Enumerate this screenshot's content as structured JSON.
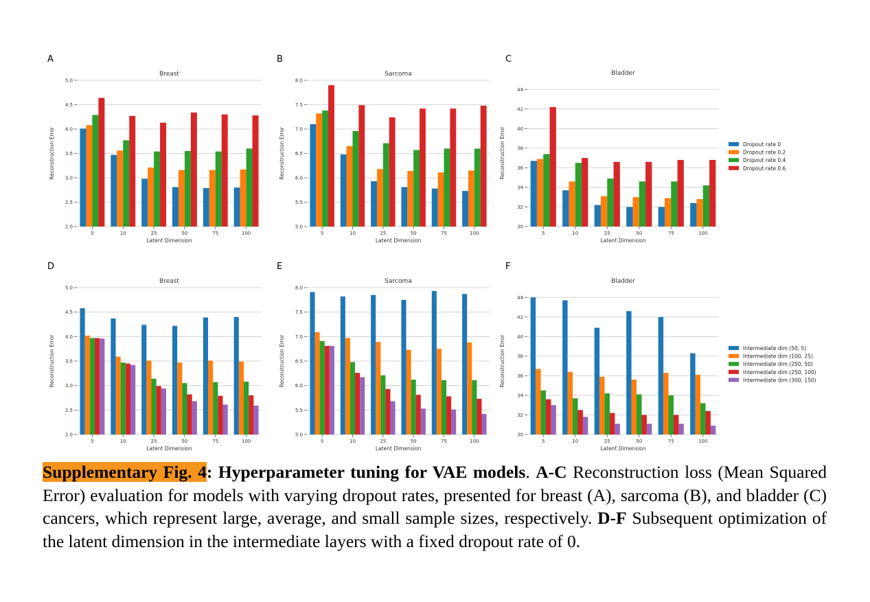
{
  "figure_id": "Supplementary Fig. 4",
  "caption": {
    "label": "Supplementary Fig. 4",
    "title": ": Hyperparameter tuning for VAE models",
    "title_end": ".",
    "ac_label": "A-C",
    "ac_text": " Reconstruction loss (Mean Squared Error) evaluation for models with varying dropout rates, presented for breast (A), sarcoma (B), and bladder (C) cancers, which represent large, average, and small sample sizes, respectively.",
    "df_label": "D-F",
    "df_text": " Subsequent optimization of the latent dimension in the intermediate layers with a fixed dropout rate of 0."
  },
  "legends": {
    "dropout": {
      "items": [
        "Dropout rate 0",
        "Dropout rate 0.2",
        "Dropout rate 0.4",
        "Dropout rate 0.6"
      ]
    },
    "intermediate": {
      "items": [
        "Intermediate dim (50, 5)",
        "Intermediate dim (100, 25)",
        "Intermediate dim (250, 50)",
        "Intermediate dim (250, 100)",
        "Intermediate dim (300, 150)"
      ]
    }
  },
  "colors": {
    "series": [
      "#1f77b4",
      "#ff7f0e",
      "#2ca02c",
      "#d62728",
      "#9467bd"
    ],
    "grid": "#c8c8c8",
    "caption_highlight": "#f7941d"
  },
  "chart_data": [
    {
      "panel": "A",
      "type": "bar",
      "title": "Breast",
      "xlabel": "Latent Dimension",
      "ylabel": "Reconstruction Error",
      "categories": [
        "5",
        "10",
        "25",
        "50",
        "75",
        "100"
      ],
      "ylim": [
        2.0,
        5.0
      ],
      "yticks": [
        "2.0",
        "2.5",
        "3.0",
        "3.5",
        "4.0",
        "4.5",
        "5.0"
      ],
      "legend": "dropout",
      "series": [
        {
          "name": "Dropout rate 0",
          "values": [
            4.01,
            3.47,
            2.98,
            2.81,
            2.79,
            2.8
          ]
        },
        {
          "name": "Dropout rate 0.2",
          "values": [
            4.08,
            3.56,
            3.21,
            3.16,
            3.16,
            3.17
          ]
        },
        {
          "name": "Dropout rate 0.4",
          "values": [
            4.29,
            3.77,
            3.54,
            3.55,
            3.54,
            3.6
          ]
        },
        {
          "name": "Dropout rate 0.6",
          "values": [
            4.64,
            4.27,
            4.13,
            4.34,
            4.3,
            4.28
          ]
        }
      ]
    },
    {
      "panel": "B",
      "type": "bar",
      "title": "Sarcoma",
      "xlabel": "Latent Dimension",
      "ylabel": "Reconstruction Error",
      "categories": [
        "5",
        "10",
        "25",
        "50",
        "75",
        "100"
      ],
      "ylim": [
        5.0,
        8.0
      ],
      "yticks": [
        "5.0",
        "5.5",
        "6.0",
        "6.5",
        "7.0",
        "7.5",
        "8.0"
      ],
      "legend": "dropout",
      "series": [
        {
          "name": "Dropout rate 0",
          "values": [
            7.1,
            6.48,
            5.93,
            5.81,
            5.78,
            5.73
          ]
        },
        {
          "name": "Dropout rate 0.2",
          "values": [
            7.32,
            6.65,
            6.18,
            6.14,
            6.11,
            6.15
          ]
        },
        {
          "name": "Dropout rate 0.4",
          "values": [
            7.38,
            6.96,
            6.71,
            6.57,
            6.6,
            6.6
          ]
        },
        {
          "name": "Dropout rate 0.6",
          "values": [
            7.9,
            7.49,
            7.24,
            7.42,
            7.42,
            7.48
          ]
        }
      ]
    },
    {
      "panel": "C",
      "type": "bar",
      "title": "Bladder",
      "xlabel": "Latent Dimension",
      "ylabel": "Reconstruction Error",
      "categories": [
        "5",
        "10",
        "25",
        "50",
        "75",
        "100"
      ],
      "ylim": [
        30,
        45
      ],
      "yticks": [
        "30",
        "32",
        "34",
        "36",
        "38",
        "40",
        "42",
        "44"
      ],
      "legend": "dropout",
      "series": [
        {
          "name": "Dropout rate 0",
          "values": [
            36.7,
            33.7,
            32.2,
            32.0,
            32.0,
            32.4
          ]
        },
        {
          "name": "Dropout rate 0.2",
          "values": [
            36.9,
            34.6,
            33.1,
            33.0,
            32.9,
            32.8
          ]
        },
        {
          "name": "Dropout rate 0.4",
          "values": [
            37.4,
            36.5,
            34.9,
            34.6,
            34.6,
            34.2
          ]
        },
        {
          "name": "Dropout rate 0.6",
          "values": [
            42.2,
            37.0,
            36.6,
            36.6,
            36.8,
            36.8
          ]
        }
      ]
    },
    {
      "panel": "D",
      "type": "bar",
      "title": "Breast",
      "xlabel": "Latent Dimension",
      "ylabel": "Reconstruction Error",
      "categories": [
        "5",
        "10",
        "25",
        "50",
        "75",
        "100"
      ],
      "ylim": [
        2.0,
        5.0
      ],
      "yticks": [
        "2.0",
        "2.5",
        "3.0",
        "3.5",
        "4.0",
        "4.5",
        "5.0"
      ],
      "legend": "intermediate",
      "series": [
        {
          "name": "Intermediate dim (50, 5)",
          "values": [
            4.58,
            4.37,
            4.24,
            4.22,
            4.39,
            4.4
          ]
        },
        {
          "name": "Intermediate dim (100, 25)",
          "values": [
            4.02,
            3.59,
            3.51,
            3.47,
            3.51,
            3.49
          ]
        },
        {
          "name": "Intermediate dim (250, 50)",
          "values": [
            3.97,
            3.47,
            3.14,
            3.05,
            3.07,
            3.08
          ]
        },
        {
          "name": "Intermediate dim (250, 100)",
          "values": [
            3.97,
            3.45,
            2.99,
            2.82,
            2.79,
            2.8
          ]
        },
        {
          "name": "Intermediate dim (300, 150)",
          "values": [
            3.96,
            3.42,
            2.94,
            2.68,
            2.61,
            2.59
          ]
        }
      ]
    },
    {
      "panel": "E",
      "type": "bar",
      "title": "Sarcoma",
      "xlabel": "Latent Dimension",
      "ylabel": "Reconstruction Error",
      "categories": [
        "5",
        "10",
        "25",
        "50",
        "75",
        "100"
      ],
      "ylim": [
        5.0,
        8.0
      ],
      "yticks": [
        "5.0",
        "5.5",
        "6.0",
        "6.5",
        "7.0",
        "7.5",
        "8.0"
      ],
      "legend": "intermediate",
      "series": [
        {
          "name": "Intermediate dim (50, 5)",
          "values": [
            7.91,
            7.82,
            7.85,
            7.75,
            7.93,
            7.87
          ]
        },
        {
          "name": "Intermediate dim (100, 25)",
          "values": [
            7.09,
            6.97,
            6.89,
            6.73,
            6.75,
            6.88
          ]
        },
        {
          "name": "Intermediate dim (250, 50)",
          "values": [
            6.91,
            6.48,
            6.21,
            6.12,
            6.11,
            6.11
          ]
        },
        {
          "name": "Intermediate dim (250, 100)",
          "values": [
            6.81,
            6.26,
            5.93,
            5.81,
            5.78,
            5.73
          ]
        },
        {
          "name": "Intermediate dim (300, 150)",
          "values": [
            6.81,
            6.17,
            5.68,
            5.53,
            5.51,
            5.42
          ]
        }
      ]
    },
    {
      "panel": "F",
      "type": "bar",
      "title": "Bladder",
      "xlabel": "Latent Dimension",
      "ylabel": "Reconstruction Error",
      "categories": [
        "5",
        "10",
        "25",
        "50",
        "75",
        "100"
      ],
      "ylim": [
        30,
        45
      ],
      "yticks": [
        "30",
        "32",
        "34",
        "36",
        "38",
        "40",
        "42",
        "44"
      ],
      "legend": "intermediate",
      "series": [
        {
          "name": "Intermediate dim (50, 5)",
          "values": [
            44.0,
            43.7,
            40.9,
            42.6,
            42.0,
            38.3
          ]
        },
        {
          "name": "Intermediate dim (100, 25)",
          "values": [
            36.7,
            36.4,
            35.9,
            35.6,
            36.3,
            36.1
          ]
        },
        {
          "name": "Intermediate dim (250, 50)",
          "values": [
            34.5,
            33.7,
            34.2,
            34.1,
            34.0,
            33.2
          ]
        },
        {
          "name": "Intermediate dim (250, 100)",
          "values": [
            33.6,
            32.5,
            32.2,
            32.0,
            32.0,
            32.4
          ]
        },
        {
          "name": "Intermediate dim (300, 150)",
          "values": [
            33.0,
            31.8,
            31.1,
            31.1,
            31.1,
            30.9
          ]
        }
      ]
    }
  ]
}
